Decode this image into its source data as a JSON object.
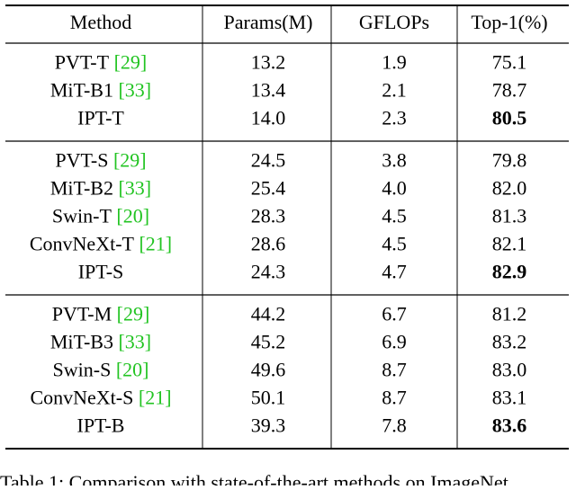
{
  "table": {
    "header": [
      "Method",
      "Params(M)",
      "GFLOPs",
      "Top-1(%)"
    ],
    "groups": [
      [
        {
          "method": "PVT-T",
          "ref": "29",
          "params": "13.2",
          "gflops": "1.9",
          "top1": "75.1"
        },
        {
          "method": "MiT-B1",
          "ref": "33",
          "params": "13.4",
          "gflops": "2.1",
          "top1": "78.7"
        },
        {
          "method": "IPT-T",
          "params": "14.0",
          "gflops": "2.3",
          "top1": "80.5",
          "bold": true
        }
      ],
      [
        {
          "method": "PVT-S",
          "ref": "29",
          "params": "24.5",
          "gflops": "3.8",
          "top1": "79.8"
        },
        {
          "method": "MiT-B2",
          "ref": "33",
          "params": "25.4",
          "gflops": "4.0",
          "top1": "82.0"
        },
        {
          "method": "Swin-T",
          "ref": "20",
          "params": "28.3",
          "gflops": "4.5",
          "top1": "81.3"
        },
        {
          "method": "ConvNeXt-T",
          "ref": "21",
          "params": "28.6",
          "gflops": "4.5",
          "top1": "82.1"
        },
        {
          "method": "IPT-S",
          "params": "24.3",
          "gflops": "4.7",
          "top1": "82.9",
          "bold": true
        }
      ],
      [
        {
          "method": "PVT-M",
          "ref": "29",
          "params": "44.2",
          "gflops": "6.7",
          "top1": "81.2"
        },
        {
          "method": "MiT-B3",
          "ref": "33",
          "params": "45.2",
          "gflops": "6.9",
          "top1": "83.2"
        },
        {
          "method": "Swin-S",
          "ref": "20",
          "params": "49.6",
          "gflops": "8.7",
          "top1": "83.0"
        },
        {
          "method": "ConvNeXt-S",
          "ref": "21",
          "params": "50.1",
          "gflops": "8.7",
          "top1": "83.1"
        },
        {
          "method": "IPT-B",
          "params": "39.3",
          "gflops": "7.8",
          "top1": "83.6",
          "bold": true
        }
      ]
    ]
  },
  "caption": "Table 1: Comparison with state-of-the-art methods on ImageNet"
}
